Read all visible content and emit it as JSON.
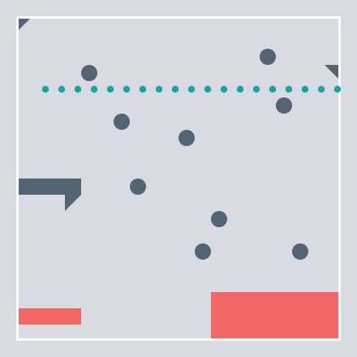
{
  "colors": {
    "background": "#d9dbe2",
    "border": "#ffffff",
    "pellet": "#1aa39a",
    "obstacle": "#546473",
    "hazard": "#f36666"
  },
  "pellet_count": 19,
  "obstacle_count": 9,
  "icons": {
    "pellet": "pellet-dot",
    "obstacle": "bumper-circle",
    "wall": "wall-triangle",
    "hazard": "hazard-block"
  }
}
